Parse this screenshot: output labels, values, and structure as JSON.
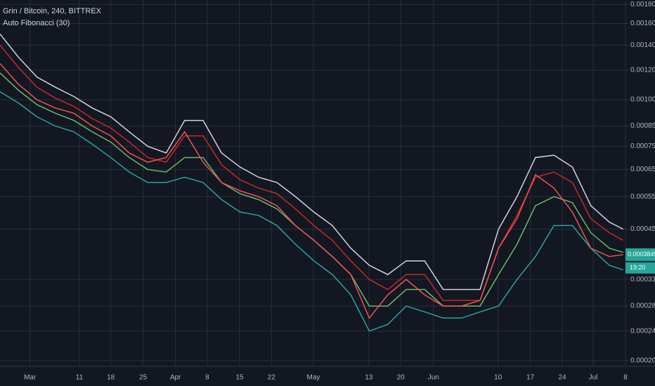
{
  "chart_data": {
    "type": "line",
    "title": "Grin / Bitcoin, 240, BITTREX",
    "subtitle": "Auto Fibonacci (30)",
    "log": true,
    "grid": true,
    "x": [
      0,
      4,
      8,
      12,
      16,
      20,
      24,
      28,
      32,
      36,
      40,
      44,
      48,
      52,
      56,
      60,
      64,
      68,
      72,
      76,
      80,
      84,
      88,
      92,
      96,
      100,
      104,
      108,
      112,
      116,
      120,
      124,
      128,
      132,
      135
    ],
    "xlim": [
      0,
      135.5
    ],
    "xticks": [
      {
        "value": 6.5,
        "label": "Mar"
      },
      {
        "value": 17.2,
        "label": "11"
      },
      {
        "value": 24.0,
        "label": "18"
      },
      {
        "value": 31.0,
        "label": "25"
      },
      {
        "value": 38.0,
        "label": "Apr"
      },
      {
        "value": 44.9,
        "label": "8"
      },
      {
        "value": 51.9,
        "label": "15"
      },
      {
        "value": 58.8,
        "label": "22"
      },
      {
        "value": 67.9,
        "label": "May"
      },
      {
        "value": 79.9,
        "label": "13"
      },
      {
        "value": 86.8,
        "label": "20"
      },
      {
        "value": 93.9,
        "label": "Jun"
      },
      {
        "value": 107.9,
        "label": "10"
      },
      {
        "value": 114.9,
        "label": "17"
      },
      {
        "value": 121.8,
        "label": "24"
      },
      {
        "value": 128.5,
        "label": "Jul"
      },
      {
        "value": 135.5,
        "label": "8"
      }
    ],
    "ylim": [
      0.000193,
      0.00185
    ],
    "yticks": [
      {
        "value": 0.0018,
        "label": "0.00180000"
      },
      {
        "value": 0.0016,
        "label": "0.00160000"
      },
      {
        "value": 0.0014,
        "label": "0.00140000"
      },
      {
        "value": 0.0012,
        "label": "0.00120000"
      },
      {
        "value": 0.001,
        "label": "0.00100000"
      },
      {
        "value": 0.00085,
        "label": "0.00085000"
      },
      {
        "value": 0.00075,
        "label": "0.00075000"
      },
      {
        "value": 0.00065,
        "label": "0.00065000"
      },
      {
        "value": 0.00055,
        "label": "0.00055000"
      },
      {
        "value": 0.00045,
        "label": "0.00045000"
      },
      {
        "value": 0.00033,
        "label": "0.00033000"
      },
      {
        "value": 0.00028,
        "label": "0.00028000"
      },
      {
        "value": 0.00024,
        "label": "0.00024000"
      },
      {
        "value": 0.0002,
        "label": "0.00020000"
      }
    ],
    "series": [
      {
        "color": "#d1d4dc",
        "values": [
          0.0015,
          0.0013,
          0.00115,
          0.00108,
          0.00102,
          0.00095,
          0.0009,
          0.00082,
          0.00075,
          0.00072,
          0.00088,
          0.00088,
          0.00072,
          0.00066,
          0.00062,
          0.0006,
          0.00055,
          0.0005,
          0.00046,
          0.0004,
          0.00036,
          0.00034,
          0.00037,
          0.00037,
          0.00031,
          0.00031,
          0.00031,
          0.00045,
          0.00055,
          0.0007,
          0.00071,
          0.00066,
          0.00052,
          0.00047,
          0.00045
        ]
      },
      {
        "color": "#c62828",
        "values": [
          0.0014,
          0.00122,
          0.00108,
          0.00101,
          0.00096,
          0.00089,
          0.00084,
          0.00077,
          0.0007,
          0.00068,
          0.0008,
          0.0008,
          0.00067,
          0.00061,
          0.00058,
          0.00056,
          0.00051,
          0.00046,
          0.00042,
          0.00037,
          0.00033,
          0.00031,
          0.00034,
          0.00034,
          0.00029,
          0.00029,
          0.00029,
          0.0004,
          0.00049,
          0.00062,
          0.00064,
          0.0006,
          0.00048,
          0.00044,
          0.00042
        ]
      },
      {
        "color": "#66bb6a",
        "values": [
          0.00118,
          0.00106,
          0.00097,
          0.00092,
          0.00088,
          0.00082,
          0.00077,
          0.0007,
          0.00065,
          0.00064,
          0.0007,
          0.0007,
          0.0006,
          0.00056,
          0.00054,
          0.00051,
          0.00046,
          0.00042,
          0.00038,
          0.00034,
          0.00028,
          0.00028,
          0.00031,
          0.00031,
          0.00028,
          0.00028,
          0.00028,
          0.00034,
          0.00041,
          0.00052,
          0.00055,
          0.00053,
          0.00044,
          0.0004,
          0.00039
        ]
      },
      {
        "color": "#26a69a",
        "values": [
          0.00105,
          0.00098,
          0.0009,
          0.00085,
          0.00082,
          0.00076,
          0.0007,
          0.00064,
          0.0006,
          0.0006,
          0.00062,
          0.0006,
          0.00054,
          0.0005,
          0.00049,
          0.00046,
          0.00041,
          0.00037,
          0.00034,
          0.0003,
          0.00024,
          0.00025,
          0.00028,
          0.00027,
          0.00026,
          0.00026,
          0.00027,
          0.00028,
          0.00033,
          0.00038,
          0.00046,
          0.00046,
          0.0004,
          0.00036,
          0.00035
        ]
      },
      {
        "color": "#ef5350",
        "values": [
          0.00125,
          0.0011,
          0.001,
          0.00095,
          0.00092,
          0.00085,
          0.0008,
          0.00072,
          0.00068,
          0.0007,
          0.00082,
          0.00068,
          0.0006,
          0.00057,
          0.00055,
          0.00052,
          0.00046,
          0.00042,
          0.00038,
          0.00034,
          0.00026,
          0.0003,
          0.00033,
          0.0003,
          0.00028,
          0.00028,
          0.00029,
          0.0004,
          0.00048,
          0.00063,
          0.00058,
          0.0005,
          0.0004,
          0.00038,
          0.00038452
        ]
      }
    ],
    "last_price": 0.00038452,
    "countdown": "19:20",
    "last_color": "#26a69a"
  }
}
